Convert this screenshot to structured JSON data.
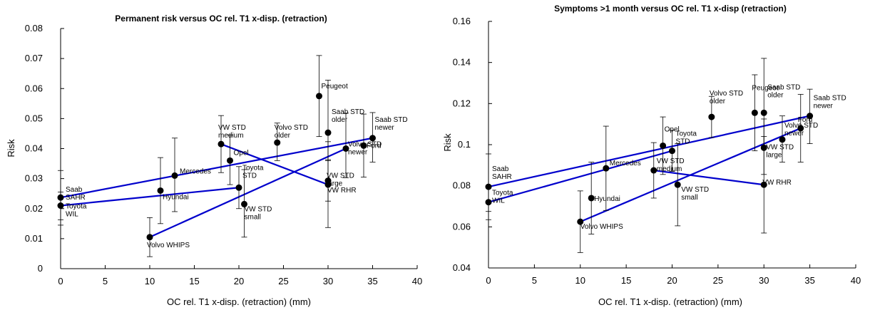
{
  "chart_data": [
    {
      "type": "scatter",
      "title": "Permanent risk versus OC rel. T1 x-disp. (retraction)",
      "xlabel": "OC rel. T1 x-disp. (retraction) (mm)",
      "ylabel": "Risk",
      "xlim": [
        0,
        40
      ],
      "ylim": [
        0,
        0.08
      ],
      "xticks": [
        "0",
        "5",
        "10",
        "15",
        "20",
        "25",
        "30",
        "35",
        "40"
      ],
      "yticks": [
        "0",
        "0.01",
        "0.02",
        "0.03",
        "0.04",
        "0.05",
        "0.06",
        "0.07",
        "0.08"
      ],
      "grid": false,
      "points": [
        {
          "label": [
            "Saab",
            "SAHR"
          ],
          "x": 0,
          "y": 0.0237,
          "lo": 0.0163,
          "hi": 0.0327
        },
        {
          "label": [
            "Toyota",
            "WIL"
          ],
          "x": 0,
          "y": 0.021,
          "lo": 0.0145,
          "hi": 0.0255
        },
        {
          "label": [
            "Volvo WHIPS"
          ],
          "x": 10,
          "y": 0.0105,
          "lo": 0.004,
          "hi": 0.017
        },
        {
          "label": [
            "Hyundai"
          ],
          "x": 11.2,
          "y": 0.026,
          "lo": 0.015,
          "hi": 0.037
        },
        {
          "label": [
            "Mercedes"
          ],
          "x": 12.8,
          "y": 0.031,
          "lo": 0.019,
          "hi": 0.0435
        },
        {
          "label": [
            "VW STD",
            "medium"
          ],
          "x": 18,
          "y": 0.0415,
          "lo": 0.032,
          "hi": 0.051
        },
        {
          "label": [
            "Opel"
          ],
          "x": 19,
          "y": 0.036,
          "lo": 0.028,
          "hi": 0.0445
        },
        {
          "label": [
            "Toyota",
            "STD"
          ],
          "x": 20,
          "y": 0.027,
          "lo": 0.02,
          "hi": 0.034
        },
        {
          "label": [
            "VW STD",
            "small"
          ],
          "x": 20.6,
          "y": 0.0215,
          "lo": 0.0105,
          "hi": 0.033
        },
        {
          "label": [
            "Volvo STD",
            "older"
          ],
          "x": 24.3,
          "y": 0.042,
          "lo": 0.036,
          "hi": 0.0485
        },
        {
          "label": [
            "Peugeot"
          ],
          "x": 29,
          "y": 0.0575,
          "lo": 0.044,
          "hi": 0.071
        },
        {
          "label": [
            "Saab STD",
            "older"
          ],
          "x": 30,
          "y": 0.0453,
          "lo": 0.036,
          "hi": 0.0628
        },
        {
          "label": [
            "VW STD",
            "large"
          ],
          "x": 30,
          "y": 0.0293,
          "lo": 0.0225,
          "hi": 0.0363
        },
        {
          "label": [
            "VW RHR"
          ],
          "x": 30,
          "y": 0.028,
          "lo": 0.0137,
          "hi": 0.0423
        },
        {
          "label": [
            "Volvo STD",
            "newer"
          ],
          "x": 32,
          "y": 0.04,
          "lo": 0.0303,
          "hi": 0.0518
        },
        {
          "label": [
            "Ford"
          ],
          "x": 34,
          "y": 0.041,
          "lo": 0.0305,
          "hi": 0.0515
        },
        {
          "label": [
            "Saab STD",
            "newer"
          ],
          "x": 35,
          "y": 0.0435,
          "lo": 0.0355,
          "hi": 0.052
        }
      ],
      "lines": [
        [
          [
            0,
            0.0237
          ],
          [
            35,
            0.0435
          ]
        ],
        [
          [
            0,
            0.021
          ],
          [
            20,
            0.027
          ]
        ],
        [
          [
            10,
            0.0105
          ],
          [
            32,
            0.04
          ]
        ],
        [
          [
            18,
            0.0415
          ],
          [
            30,
            0.028
          ]
        ]
      ]
    },
    {
      "type": "scatter",
      "title": "Symptoms >1 month versus OC rel. T1 x-disp (retraction)",
      "xlabel": "OC rel. T1 x-disp. (retraction) (mm)",
      "ylabel": "Risk",
      "xlim": [
        0,
        40
      ],
      "ylim": [
        0.04,
        0.16
      ],
      "xticks": [
        "0",
        "5",
        "10",
        "15",
        "20",
        "25",
        "30",
        "35",
        "40"
      ],
      "yticks": [
        "0.04",
        "0.06",
        "0.08",
        "0.1",
        "0.12",
        "0.14",
        "0.16"
      ],
      "grid": false,
      "points": [
        {
          "label": [
            "Saab",
            "SAHR"
          ],
          "x": 0,
          "y": 0.0795,
          "lo": 0.0675,
          "hi": 0.0955
        },
        {
          "label": [
            "Toyota",
            "WIL"
          ],
          "x": 0,
          "y": 0.072,
          "lo": 0.0635,
          "hi": 0.0795
        },
        {
          "label": [
            "Volvo WHIPS"
          ],
          "x": 10,
          "y": 0.0625,
          "lo": 0.0475,
          "hi": 0.0775
        },
        {
          "label": [
            "Hyundai"
          ],
          "x": 11.2,
          "y": 0.074,
          "lo": 0.0565,
          "hi": 0.0915
        },
        {
          "label": [
            "Mercedes"
          ],
          "x": 12.8,
          "y": 0.0885,
          "lo": 0.068,
          "hi": 0.109
        },
        {
          "label": [
            "VW STD",
            "medium"
          ],
          "x": 18,
          "y": 0.0875,
          "lo": 0.074,
          "hi": 0.101
        },
        {
          "label": [
            "Opel"
          ],
          "x": 19,
          "y": 0.0995,
          "lo": 0.0855,
          "hi": 0.1135
        },
        {
          "label": [
            "Toyota",
            "STD"
          ],
          "x": 20,
          "y": 0.097,
          "lo": 0.087,
          "hi": 0.107
        },
        {
          "label": [
            "VW STD",
            "small"
          ],
          "x": 20.6,
          "y": 0.0805,
          "lo": 0.0605,
          "hi": 0.1005
        },
        {
          "label": [
            "Volvo STD",
            "older"
          ],
          "x": 24.3,
          "y": 0.1135,
          "lo": 0.1035,
          "hi": 0.1235
        },
        {
          "label": [
            "Peugeot"
          ],
          "x": 29,
          "y": 0.1155,
          "lo": 0.097,
          "hi": 0.134
        },
        {
          "label": [
            "Saab STD",
            "older"
          ],
          "x": 30,
          "y": 0.1155,
          "lo": 0.0995,
          "hi": 0.142
        },
        {
          "label": [
            "VW STD",
            "large"
          ],
          "x": 30,
          "y": 0.0985,
          "lo": 0.0855,
          "hi": 0.1125
        },
        {
          "label": [
            "VW RHR"
          ],
          "x": 30,
          "y": 0.0805,
          "lo": 0.057,
          "hi": 0.104
        },
        {
          "label": [
            "Volvo STD",
            "newer"
          ],
          "x": 32,
          "y": 0.1025,
          "lo": 0.0915,
          "hi": 0.114
        },
        {
          "label": [
            "Ford"
          ],
          "x": 34,
          "y": 0.108,
          "lo": 0.0915,
          "hi": 0.1245
        },
        {
          "label": [
            "Saab STD",
            "newer"
          ],
          "x": 35,
          "y": 0.114,
          "lo": 0.1005,
          "hi": 0.127
        }
      ],
      "lines": [
        [
          [
            0,
            0.0795
          ],
          [
            35,
            0.114
          ]
        ],
        [
          [
            0,
            0.072
          ],
          [
            20,
            0.097
          ]
        ],
        [
          [
            10,
            0.0625
          ],
          [
            34,
            0.108
          ]
        ],
        [
          [
            18,
            0.0875
          ],
          [
            30,
            0.0805
          ]
        ]
      ]
    }
  ]
}
